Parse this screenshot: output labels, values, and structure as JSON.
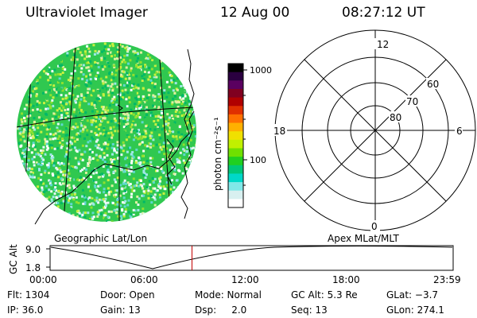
{
  "header": {
    "title": "Ultraviolet Imager",
    "date": "12 Aug 00",
    "time": "08:27:12 UT"
  },
  "colorbar": {
    "tick_labels": [
      "1000",
      "100"
    ],
    "unit_label": "photon cm⁻²s⁻¹",
    "colors": [
      "#000000",
      "#2a0040",
      "#5a0060",
      "#800020",
      "#b00000",
      "#e03000",
      "#ff7000",
      "#ffb000",
      "#f0e000",
      "#c0f000",
      "#70e000",
      "#20d020",
      "#00c878",
      "#00d8c8",
      "#80e8e8",
      "#d8f0f0",
      "#ffffff"
    ]
  },
  "polar": {
    "mlt_labels": {
      "top": "12",
      "left": "18",
      "right": "6",
      "bottom": "0"
    },
    "mlat_labels": [
      "60",
      "70",
      "80"
    ]
  },
  "footer": {
    "left_caption": "Geographic Lat/Lon",
    "right_caption": "Apex MLat/MLT",
    "y_axis_label": "GC Alt",
    "y_ticks": [
      "9.0",
      "1.8"
    ],
    "x_ticks": [
      "00:00",
      "06:00",
      "12:00",
      "18:00",
      "23:59"
    ],
    "current_time_fraction": 0.3521
  },
  "info": {
    "row1": {
      "flt": "Flt: 1304",
      "door": "Door: Open",
      "mode": "Mode: Normal",
      "gcalt": "GC Alt: 5.3 Re",
      "glat": "GLat:  −3.7"
    },
    "row2": {
      "ip": "IP: 36.0",
      "gain": "Gain: 13",
      "dsp": "Dsp:     2.0",
      "seq": "Seq: 13",
      "glon": "GLon: 274.1"
    }
  }
}
